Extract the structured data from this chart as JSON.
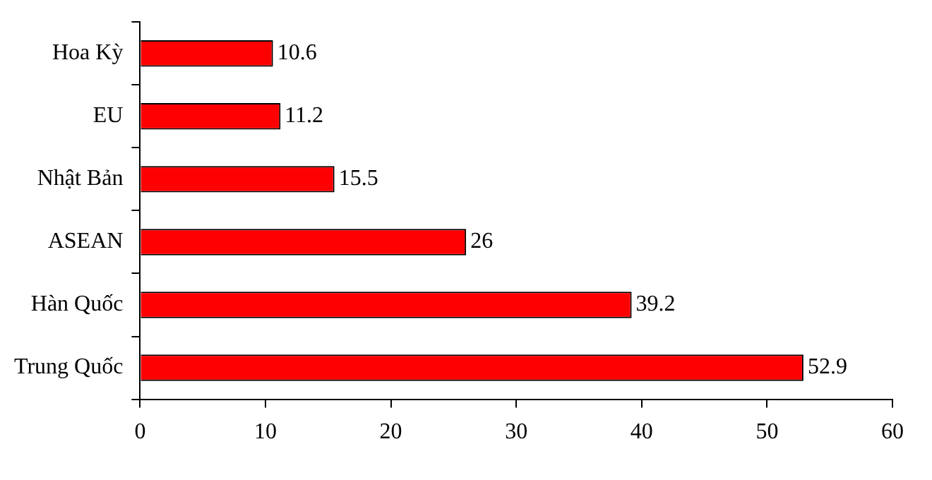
{
  "chart_data": {
    "type": "bar",
    "orientation": "horizontal",
    "categories": [
      "Hoa Kỳ",
      "EU",
      "Nhật Bản",
      "ASEAN",
      "Hàn Quốc",
      "Trung Quốc"
    ],
    "values": [
      10.6,
      11.2,
      15.5,
      26,
      39.2,
      52.9
    ],
    "color": "#ff0000",
    "xlim": [
      0,
      60
    ],
    "xticks": [
      0,
      10,
      20,
      30,
      40,
      50,
      60
    ],
    "data_labels": true,
    "grid": false,
    "legend": false
  }
}
